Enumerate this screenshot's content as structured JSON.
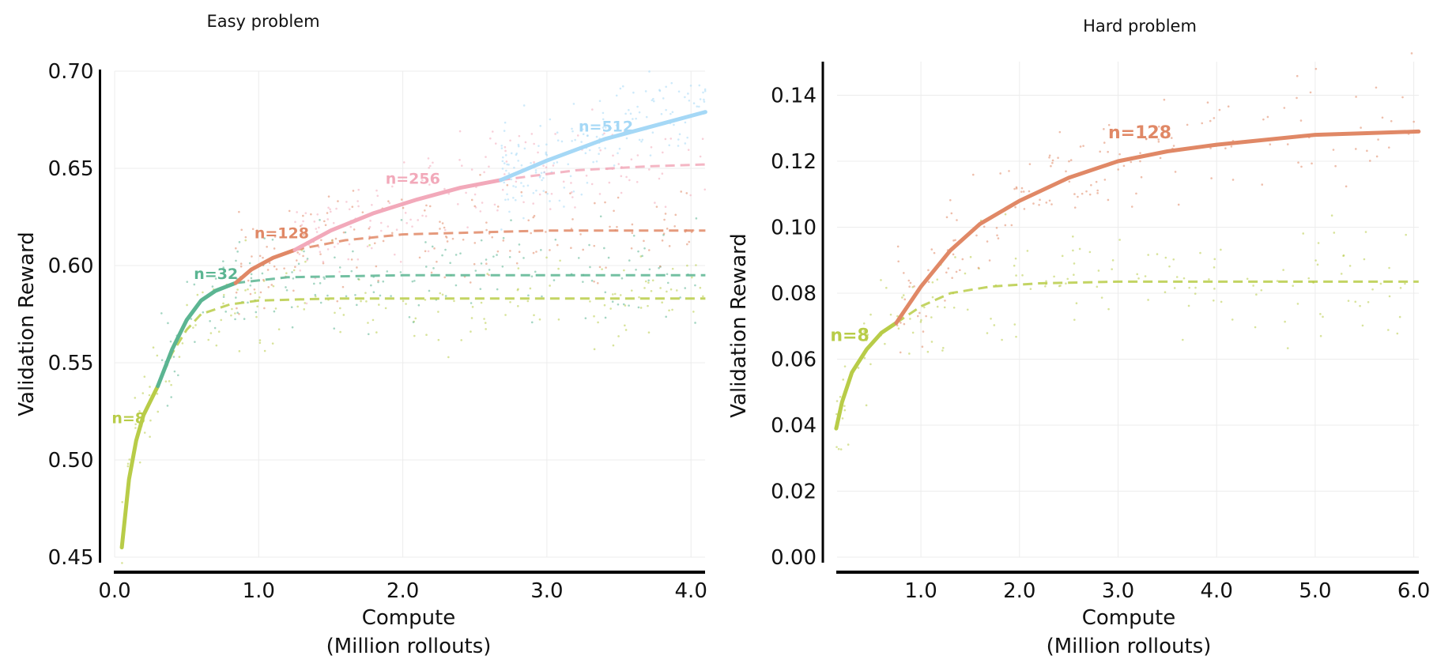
{
  "chart_data": [
    {
      "type": "line",
      "title": "Easy problem",
      "xlabel": [
        "Compute",
        "(Million rollouts)"
      ],
      "ylabel": "Validation Reward",
      "xlim": [
        -0.12,
        4.1
      ],
      "ylim": [
        0.45,
        0.7
      ],
      "xticks": [
        0.0,
        1.0,
        2.0,
        3.0,
        4.0
      ],
      "xtick_labels": [
        "0.0",
        "1.0",
        "2.0",
        "3.0",
        "4.0"
      ],
      "yticks": [
        0.45,
        0.5,
        0.55,
        0.6,
        0.65,
        0.7
      ],
      "ytick_labels": [
        "0.45",
        "0.50",
        "0.55",
        "0.60",
        "0.65",
        "0.70"
      ],
      "grid": true,
      "series": [
        {
          "name": "n=8",
          "color": "#b8cc48",
          "solid": [
            [
              0.05,
              0.455
            ],
            [
              0.1,
              0.49
            ],
            [
              0.15,
              0.51
            ],
            [
              0.2,
              0.523
            ],
            [
              0.3,
              0.538
            ]
          ],
          "dashed": [
            [
              0.3,
              0.538
            ],
            [
              0.4,
              0.555
            ],
            [
              0.5,
              0.567
            ],
            [
              0.6,
              0.575
            ],
            [
              0.8,
              0.58
            ],
            [
              1.0,
              0.582
            ],
            [
              1.5,
              0.583
            ],
            [
              4.1,
              0.583
            ]
          ],
          "label_at": [
            -0.02,
            0.519
          ]
        },
        {
          "name": "n=32",
          "color": "#5bb592",
          "solid": [
            [
              0.3,
              0.538
            ],
            [
              0.4,
              0.557
            ],
            [
              0.5,
              0.572
            ],
            [
              0.6,
              0.582
            ],
            [
              0.7,
              0.587
            ],
            [
              0.84,
              0.591
            ]
          ],
          "dashed": [
            [
              0.84,
              0.591
            ],
            [
              1.2,
              0.594
            ],
            [
              2.0,
              0.595
            ],
            [
              4.1,
              0.595
            ]
          ],
          "label_at": [
            0.55,
            0.593
          ]
        },
        {
          "name": "n=128",
          "color": "#e08866",
          "solid": [
            [
              0.84,
              0.591
            ],
            [
              0.95,
              0.598
            ],
            [
              1.1,
              0.604
            ],
            [
              1.25,
              0.608
            ]
          ],
          "dashed": [
            [
              1.25,
              0.608
            ],
            [
              1.6,
              0.613
            ],
            [
              2.0,
              0.616
            ],
            [
              3.0,
              0.618
            ],
            [
              4.1,
              0.618
            ]
          ],
          "label_at": [
            0.97,
            0.614
          ]
        },
        {
          "name": "n=256",
          "color": "#f2a9ba",
          "solid": [
            [
              1.25,
              0.608
            ],
            [
              1.5,
              0.618
            ],
            [
              1.8,
              0.627
            ],
            [
              2.1,
              0.634
            ],
            [
              2.4,
              0.64
            ],
            [
              2.68,
              0.644
            ]
          ],
          "dashed": [
            [
              2.68,
              0.644
            ],
            [
              3.2,
              0.649
            ],
            [
              3.7,
              0.651
            ],
            [
              4.1,
              0.652
            ]
          ],
          "label_at": [
            1.88,
            0.642
          ]
        },
        {
          "name": "n=512",
          "color": "#a5d8f6",
          "solid": [
            [
              2.68,
              0.644
            ],
            [
              3.0,
              0.654
            ],
            [
              3.4,
              0.665
            ],
            [
              3.8,
              0.673
            ],
            [
              4.1,
              0.679
            ]
          ],
          "dashed": [],
          "label_at": [
            3.22,
            0.669
          ]
        }
      ]
    },
    {
      "type": "line",
      "title": "Hard problem",
      "xlabel": [
        "Compute",
        "(Million rollouts)"
      ],
      "ylabel": "Validation Reward",
      "xlim": [
        0.14,
        6.05
      ],
      "ylim": [
        0.0,
        0.15
      ],
      "xticks": [
        1.0,
        2.0,
        3.0,
        4.0,
        5.0,
        6.0
      ],
      "xtick_labels": [
        "1.0",
        "2.0",
        "3.0",
        "4.0",
        "5.0",
        "6.0"
      ],
      "yticks": [
        0.0,
        0.02,
        0.04,
        0.06,
        0.08,
        0.1,
        0.12,
        0.14
      ],
      "ytick_labels": [
        "0.00",
        "0.02",
        "0.04",
        "0.06",
        "0.08",
        "0.10",
        "0.12",
        "0.14"
      ],
      "grid": true,
      "series": [
        {
          "name": "n=8",
          "color": "#b8cc48",
          "solid": [
            [
              0.14,
              0.039
            ],
            [
              0.2,
              0.047
            ],
            [
              0.3,
              0.056
            ],
            [
              0.45,
              0.063
            ],
            [
              0.6,
              0.068
            ],
            [
              0.75,
              0.071
            ]
          ],
          "dashed": [
            [
              0.75,
              0.071
            ],
            [
              1.0,
              0.076
            ],
            [
              1.3,
              0.08
            ],
            [
              1.7,
              0.082
            ],
            [
              2.2,
              0.083
            ],
            [
              3.0,
              0.0835
            ],
            [
              6.05,
              0.0835
            ]
          ],
          "label_at": [
            0.08,
            0.0655
          ]
        },
        {
          "name": "n=128",
          "color": "#e08866",
          "solid": [
            [
              0.75,
              0.071
            ],
            [
              1.0,
              0.082
            ],
            [
              1.3,
              0.093
            ],
            [
              1.6,
              0.101
            ],
            [
              2.0,
              0.108
            ],
            [
              2.5,
              0.115
            ],
            [
              3.0,
              0.12
            ],
            [
              3.5,
              0.123
            ],
            [
              4.0,
              0.125
            ],
            [
              5.0,
              0.128
            ],
            [
              6.05,
              0.129
            ]
          ],
          "dashed": [],
          "label_at": [
            2.9,
            0.127
          ]
        }
      ]
    }
  ]
}
